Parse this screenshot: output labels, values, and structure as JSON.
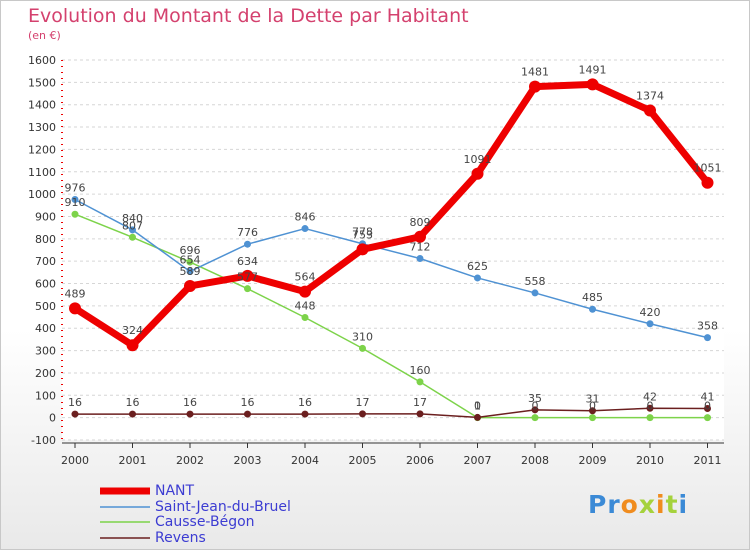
{
  "chart_data": {
    "type": "line",
    "title": "Evolution du Montant de la Dette par Habitant",
    "subtitle": "(en €)",
    "xlabel": "",
    "ylabel": "",
    "categories": [
      "2000",
      "2001",
      "2002",
      "2003",
      "2004",
      "2005",
      "2006",
      "2007",
      "2008",
      "2009",
      "2010",
      "2011"
    ],
    "ylim": [
      -100,
      1600
    ],
    "yticks": [
      -100,
      0,
      100,
      200,
      300,
      400,
      500,
      600,
      700,
      800,
      900,
      1000,
      1100,
      1200,
      1300,
      1400,
      1500,
      1600
    ],
    "grid": "horizontal dashed",
    "legend_position": "bottom-left",
    "series": [
      {
        "name": "NANT",
        "color": "#ee0000",
        "values": [
          489,
          324,
          589,
          634,
          564,
          753,
          809,
          1091,
          1481,
          1491,
          1374,
          1051
        ]
      },
      {
        "name": "Saint-Jean-du-Bruel",
        "color": "#4f92d3",
        "values": [
          976,
          840,
          654,
          776,
          846,
          778,
          712,
          625,
          558,
          485,
          420,
          358
        ]
      },
      {
        "name": "Causse-Bégon",
        "color": "#7dd34a",
        "values": [
          910,
          807,
          696,
          577,
          448,
          310,
          160,
          0,
          0,
          0,
          0,
          0
        ]
      },
      {
        "name": "Revens",
        "color": "#6b1f1f",
        "values": [
          16,
          16,
          16,
          16,
          16,
          17,
          17,
          1,
          35,
          31,
          42,
          41
        ]
      }
    ]
  },
  "logo": {
    "letters": [
      "P",
      "r",
      "o",
      "x",
      "i",
      "t",
      "i"
    ],
    "colors": [
      "#3b8ad6",
      "#3b8ad6",
      "#f08c1e",
      "#a5d23c",
      "#f08c1e",
      "#a5d23c",
      "#3b8ad6"
    ]
  }
}
